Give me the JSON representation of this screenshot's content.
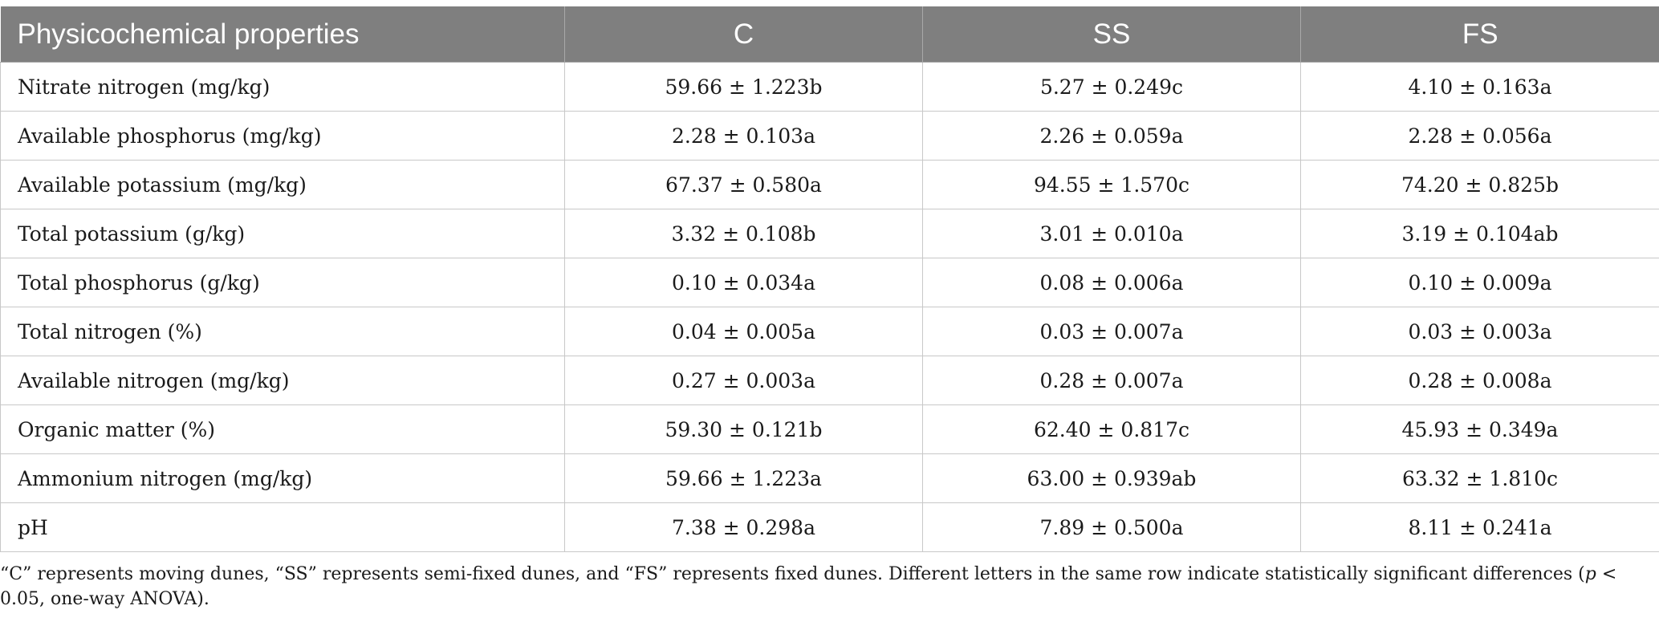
{
  "table": {
    "headers": [
      "Physicochemical properties",
      "C",
      "SS",
      "FS"
    ],
    "rows": [
      [
        "Nitrate nitrogen (mg/kg)",
        "59.66 ± 1.223b",
        "5.27 ± 0.249c",
        "4.10 ± 0.163a"
      ],
      [
        "Available phosphorus (mg/kg)",
        "2.28 ± 0.103a",
        "2.26 ± 0.059a",
        "2.28 ± 0.056a"
      ],
      [
        "Available potassium (mg/kg)",
        "67.37 ± 0.580a",
        "94.55 ± 1.570c",
        "74.20 ± 0.825b"
      ],
      [
        "Total potassium (g/kg)",
        "3.32 ± 0.108b",
        "3.01 ± 0.010a",
        "3.19 ± 0.104ab"
      ],
      [
        "Total phosphorus (g/kg)",
        "0.10 ± 0.034a",
        "0.08 ± 0.006a",
        "0.10 ± 0.009a"
      ],
      [
        "Total nitrogen (%)",
        "0.04 ± 0.005a",
        "0.03 ± 0.007a",
        "0.03 ± 0.003a"
      ],
      [
        "Available nitrogen (mg/kg)",
        "0.27 ± 0.003a",
        "0.28 ± 0.007a",
        "0.28 ± 0.008a"
      ],
      [
        "Organic matter (%)",
        "59.30 ± 0.121b",
        "62.40 ± 0.817c",
        "45.93 ± 0.349a"
      ],
      [
        "Ammonium nitrogen (mg/kg)",
        "59.66 ± 1.223a",
        "63.00 ± 0.939ab",
        "63.32 ± 1.810c"
      ],
      [
        "pH",
        "7.38 ± 0.298a",
        "7.89 ± 0.500a",
        "8.11 ± 0.241a"
      ]
    ]
  },
  "footnote": {
    "before": "“C” represents moving dunes, “SS” represents semi-fixed dunes, and “FS” represents fixed dunes. Different letters in the same row indicate statistically significant differences (",
    "p": "p",
    "after": " < 0.05, one-way ANOVA)."
  }
}
